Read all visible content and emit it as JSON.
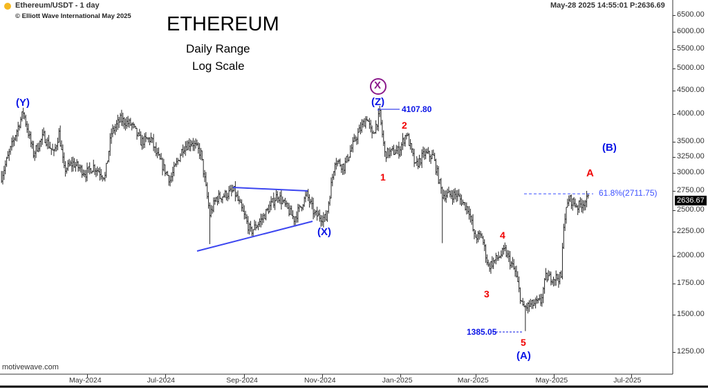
{
  "header": {
    "symbol_line": "Ethereum/USDT - 1 day",
    "copyright": "© Elliott Wave International May 2025",
    "title": "ETHEREUM",
    "subtitle1": "Daily Range",
    "subtitle2": "Log Scale",
    "timestamp": "May-28 2025  14:55:01  P:2636.69",
    "watermark": "motivewave.com",
    "status_dot_color": "#f5b921"
  },
  "chart_data": {
    "type": "bar",
    "subtype": "OHLC daily range",
    "y_scale": "log",
    "ylim": [
      1150,
      6900
    ],
    "xlim": [
      "2024-02-24",
      "2025-07-31"
    ],
    "grid": false,
    "y_ticks": [
      "6500.00",
      "6000.00",
      "5500.00",
      "5000.00",
      "4500.00",
      "4000.00",
      "3500.00",
      "3250.00",
      "3000.00",
      "2750.00",
      "2500.00",
      "2250.00",
      "2000.00",
      "1750.00",
      "1500.00",
      "1250.00"
    ],
    "x_ticks": [
      "May-2024",
      "Jul-2024",
      "Sep-2024",
      "Nov-2024",
      "Jan-2025",
      "Mar-2025",
      "May-2025",
      "Jul-2025"
    ],
    "x_tick_dates": [
      "2024-05-01",
      "2024-07-01",
      "2024-09-01",
      "2024-11-01",
      "2025-01-01",
      "2025-03-01",
      "2025-05-01",
      "2025-07-01"
    ],
    "last_price": "2636.67",
    "price_path": [
      [
        "2024-02-24",
        2950
      ],
      [
        "2024-03-04",
        3500
      ],
      [
        "2024-03-12",
        4050
      ],
      [
        "2024-03-20",
        3300
      ],
      [
        "2024-03-28",
        3600
      ],
      [
        "2024-04-05",
        3300
      ],
      [
        "2024-04-09",
        3650
      ],
      [
        "2024-04-13",
        3050
      ],
      [
        "2024-04-20",
        3150
      ],
      [
        "2024-04-30",
        3000
      ],
      [
        "2024-05-06",
        3100
      ],
      [
        "2024-05-15",
        2950
      ],
      [
        "2024-05-20",
        3650
      ],
      [
        "2024-05-27",
        3900
      ],
      [
        "2024-06-05",
        3800
      ],
      [
        "2024-06-12",
        3500
      ],
      [
        "2024-06-20",
        3550
      ],
      [
        "2024-06-24",
        3300
      ],
      [
        "2024-07-05",
        2900
      ],
      [
        "2024-07-15",
        3400
      ],
      [
        "2024-07-22",
        3500
      ],
      [
        "2024-07-29",
        3300
      ],
      [
        "2024-08-05",
        2450
      ],
      [
        "2024-08-10",
        2650
      ],
      [
        "2024-08-24",
        2750
      ],
      [
        "2024-09-06",
        2250
      ],
      [
        "2024-09-15",
        2400
      ],
      [
        "2024-09-27",
        2700
      ],
      [
        "2024-10-10",
        2400
      ],
      [
        "2024-10-20",
        2700
      ],
      [
        "2024-10-26",
        2450
      ],
      [
        "2024-11-04",
        2400
      ],
      [
        "2024-11-11",
        3200
      ],
      [
        "2024-11-18",
        3100
      ],
      [
        "2024-11-28",
        3600
      ],
      [
        "2024-12-06",
        3950
      ],
      [
        "2024-12-10",
        3600
      ],
      [
        "2024-12-16",
        4000
      ],
      [
        "2024-12-20",
        3300
      ],
      [
        "2024-12-31",
        3350
      ],
      [
        "2025-01-06",
        3650
      ],
      [
        "2025-01-13",
        3100
      ],
      [
        "2025-01-20",
        3300
      ],
      [
        "2025-01-27",
        3250
      ],
      [
        "2025-02-03",
        2700
      ],
      [
        "2025-02-14",
        2700
      ],
      [
        "2025-02-24",
        2500
      ],
      [
        "2025-02-28",
        2200
      ],
      [
        "2025-03-06",
        2200
      ],
      [
        "2025-03-11",
        1900
      ],
      [
        "2025-03-24",
        2050
      ],
      [
        "2025-04-01",
        1850
      ],
      [
        "2025-04-07",
        1550
      ],
      [
        "2025-04-21",
        1600
      ],
      [
        "2025-04-25",
        1800
      ],
      [
        "2025-05-07",
        1800
      ],
      [
        "2025-05-09",
        2350
      ],
      [
        "2025-05-13",
        2650
      ],
      [
        "2025-05-20",
        2550
      ],
      [
        "2025-05-28",
        2640
      ]
    ],
    "extreme_wicks": [
      [
        "2024-08-05",
        2120
      ],
      [
        "2024-12-16",
        4107.8
      ],
      [
        "2025-02-03",
        2130
      ],
      [
        "2025-04-09",
        1385.05
      ]
    ],
    "annotations": {
      "wave_labels_blue": [
        "(Y)",
        "(Z)",
        "(X)",
        "(A)",
        "(B)"
      ],
      "wave_labels_red": [
        "1",
        "2",
        "3",
        "4",
        "5",
        "A"
      ],
      "circled_label": "X",
      "high_label": "4107.80",
      "low_label": "1385.05",
      "fib_label": "61.8%(2711.75)",
      "fib_value": 2711.75
    },
    "colors": {
      "bars": "#222222",
      "wave_blue": "#0a14e6",
      "wave_red": "#f00000",
      "circle": "#8b1a8b",
      "fib": "#3c50ff"
    }
  }
}
